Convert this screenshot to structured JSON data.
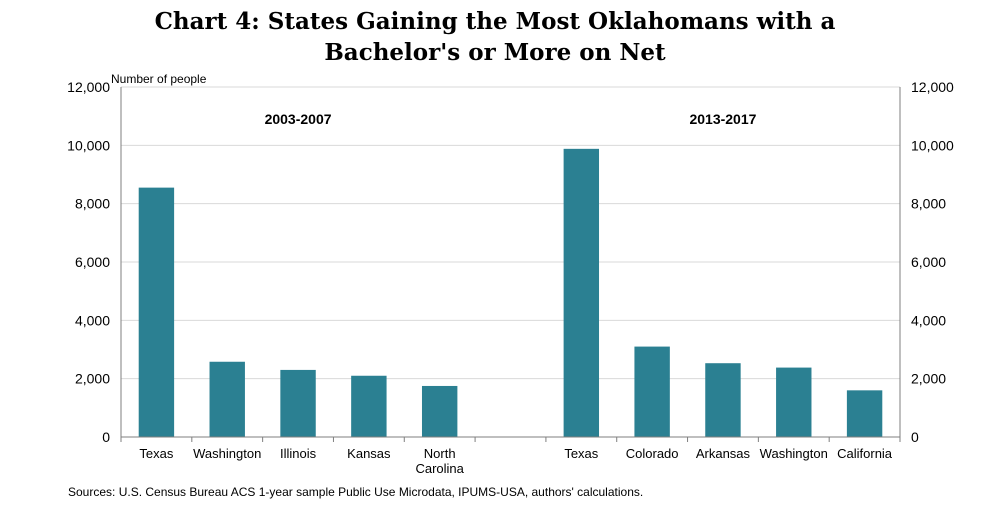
{
  "title_lines": [
    "Chart 4: States Gaining the Most Oklahomans with a",
    "Bachelor's or More on Net"
  ],
  "source": "Sources: U.S. Census Bureau ACS 1-year sample Public Use Microdata, IPUMS-USA, authors' calculations.",
  "colors": {
    "bar": "#2b8092",
    "grid": "#d9d9d9",
    "axis": "#7f7f7f"
  },
  "chart_data": {
    "type": "bar",
    "title": "Chart 4: States Gaining the Most Oklahomans with a Bachelor's or More on Net",
    "ylabel": "Number of people",
    "ylim": [
      0,
      12000
    ],
    "yticks": [
      0,
      2000,
      4000,
      6000,
      8000,
      10000,
      12000
    ],
    "ytick_labels": [
      "0",
      "2,000",
      "4,000",
      "6,000",
      "8,000",
      "10,000",
      "12,000"
    ],
    "secondary_y_axis": true,
    "grid": true,
    "groups": [
      {
        "name": "2003-2007",
        "categories": [
          "Texas",
          "Washington",
          "Illinois",
          "Kansas",
          "North Carolina"
        ],
        "category_lines": [
          [
            "Texas"
          ],
          [
            "Washington"
          ],
          [
            "Illinois"
          ],
          [
            "Kansas"
          ],
          [
            "North",
            "Carolina"
          ]
        ],
        "values": [
          8550,
          2580,
          2300,
          2100,
          1750
        ]
      },
      {
        "name": "2013-2017",
        "categories": [
          "Texas",
          "Colorado",
          "Arkansas",
          "Washington",
          "California"
        ],
        "category_lines": [
          [
            "Texas"
          ],
          [
            "Colorado"
          ],
          [
            "Arkansas"
          ],
          [
            "Washington"
          ],
          [
            "California"
          ]
        ],
        "values": [
          9880,
          3100,
          2530,
          2380,
          1600
        ]
      }
    ]
  }
}
